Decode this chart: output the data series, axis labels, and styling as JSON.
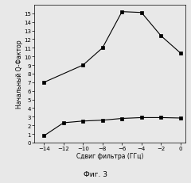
{
  "series1_x": [
    -14,
    -10,
    -8,
    -6,
    -4,
    -2,
    0
  ],
  "series1_y": [
    7.0,
    9.0,
    11.0,
    15.2,
    15.1,
    12.4,
    10.4
  ],
  "series2_x": [
    -14,
    -12,
    -10,
    -8,
    -6,
    -4,
    -2,
    0
  ],
  "series2_y": [
    0.8,
    2.3,
    2.5,
    2.6,
    2.8,
    2.9,
    2.9,
    2.85
  ],
  "xlabel": "Сдвиг фильтра (ГГц)",
  "ylabel": "Начальный Q-Фактор",
  "caption": "Фиг. 3",
  "xlim": [
    -15,
    0.5
  ],
  "ylim": [
    0,
    16
  ],
  "xticks": [
    -14,
    -12,
    -10,
    -8,
    -6,
    -4,
    -2,
    0
  ],
  "yticks": [
    0,
    1,
    2,
    3,
    4,
    5,
    6,
    7,
    8,
    9,
    10,
    11,
    12,
    13,
    14,
    15
  ],
  "line_color": "#000000",
  "marker": "s",
  "marker_size": 2.5,
  "line_width": 0.8,
  "tick_fontsize": 5.0,
  "label_fontsize": 5.5,
  "caption_fontsize": 6.5,
  "bg_color": "#f0f0f0"
}
